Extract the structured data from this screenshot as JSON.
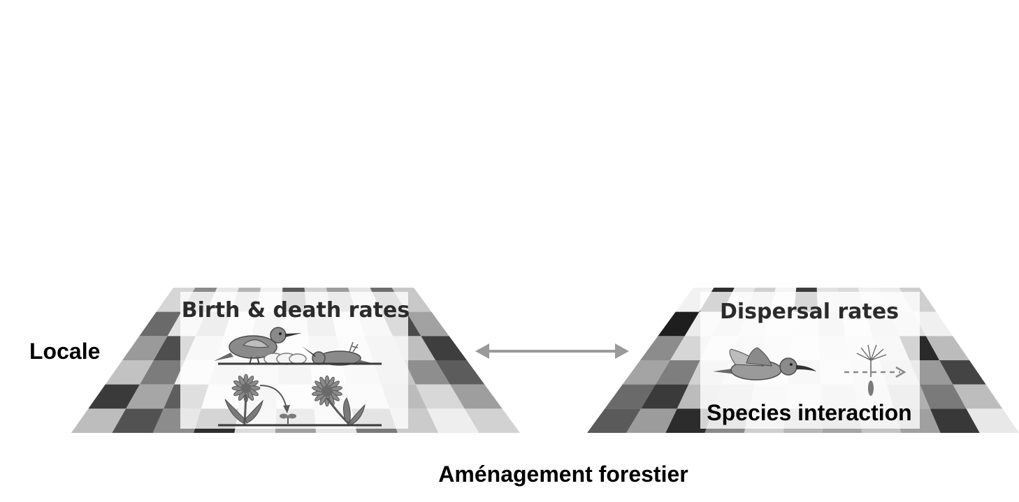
{
  "labels": {
    "locale": "Locale",
    "management": "Aménagement forestier"
  },
  "left_panel": {
    "title": "Birth & death rates"
  },
  "right_panel": {
    "title": "Dispersal rates",
    "subtitle": "Species interaction"
  },
  "grid": {
    "rows": 6,
    "cols": 11,
    "left_shades": [
      [
        "#d6d6d6",
        "#8a8a8a",
        "#e8e8e8",
        "#b4b4b4",
        "#f0f0f0",
        "#5a5a5a",
        "#d0d0d0",
        "#9c9c9c",
        "#e4e4e4",
        "#6e6e6e",
        "#c8c8c8"
      ],
      [
        "#6a6a6a",
        "#e2e2e2",
        "#a8a8a8",
        "#f2f2f2",
        "#cfcfcf",
        "#ececec",
        "#b8b8b8",
        "#f4f4f4",
        "#dadada",
        "#4a4a4a",
        "#a2a2a2"
      ],
      [
        "#9a9a9a",
        "#4e4e4e",
        "#dcdcdc",
        "#eeeeee",
        "#c4c4c4",
        "#f6f6f6",
        "#d8d8d8",
        "#ebebeb",
        "#cacaca",
        "#bfbfbf",
        "#3e3e3e"
      ],
      [
        "#c2c2c2",
        "#7c7c7c",
        "#f0f0f0",
        "#d4d4d4",
        "#e6e6e6",
        "#cdcdcd",
        "#f3f3f3",
        "#dedede",
        "#c6c6c6",
        "#8e8e8e",
        "#5c5c5c"
      ],
      [
        "#3a3a3a",
        "#a6a6a6",
        "#5e5e5e",
        "#ededed",
        "#d2d2d2",
        "#f5f5f5",
        "#e0e0e0",
        "#eaeaea",
        "#bcbcbc",
        "#d8d8d8",
        "#9e9e9e"
      ],
      [
        "#bdbdbd",
        "#525252",
        "#8c8c8c",
        "#2e2e2e",
        "#dcdcdc",
        "#a0a0a0",
        "#e6e6e6",
        "#7a7a7a",
        "#cbcbcb",
        "#eeeeee",
        "#d2d2d2"
      ]
    ],
    "right_shades": [
      [
        "#f2f2f2",
        "#2e2e2e",
        "#e6e6e6",
        "#d0d0d0",
        "#f4f4f4",
        "#3c3c3c",
        "#e2e2e2",
        "#dadada",
        "#f0f0f0",
        "#ececec",
        "#cfcfcf"
      ],
      [
        "#1e1e1e",
        "#ececec",
        "#dcdcdc",
        "#e8e8e8",
        "#f6f6f6",
        "#ededed",
        "#d8d8d8",
        "#f2f2f2",
        "#d4d4d4",
        "#e0e0e0",
        "#f0f0f0"
      ],
      [
        "#8c8c8c",
        "#d6d6d6",
        "#eeeeee",
        "#dedede",
        "#e9e9e9",
        "#f4f4f4",
        "#e4e4e4",
        "#ebebeb",
        "#dcdcdc",
        "#2a2a2a",
        "#bcbcbc"
      ],
      [
        "#a4a4a4",
        "#7e7e7e",
        "#d2d2d2",
        "#e4e4e4",
        "#f2f2f2",
        "#dcdcdc",
        "#eeeeee",
        "#e6e6e6",
        "#cdcdcd",
        "#9a9a9a",
        "#444444"
      ],
      [
        "#6a6a6a",
        "#3a3a3a",
        "#bcbcbc",
        "#c8c8c8",
        "#e2e2e2",
        "#eaeaea",
        "#d6d6d6",
        "#dedede",
        "#b0b0b0",
        "#7a7a7a",
        "#bdbdbd"
      ],
      [
        "#5a5a5a",
        "#9c9c9c",
        "#2c2c2c",
        "#8a8a8a",
        "#cfcfcf",
        "#b6b6b6",
        "#a4a4a4",
        "#c2c2c2",
        "#a0a0a0",
        "#383838",
        "#e8e8e8"
      ]
    ]
  },
  "colors": {
    "arrow": "#9a9a9a",
    "box_fill": "#ffffff",
    "illustration_dark": "#4a4a4a",
    "illustration_mid": "#8a8a8a",
    "illustration_light": "#cfcfcf"
  }
}
